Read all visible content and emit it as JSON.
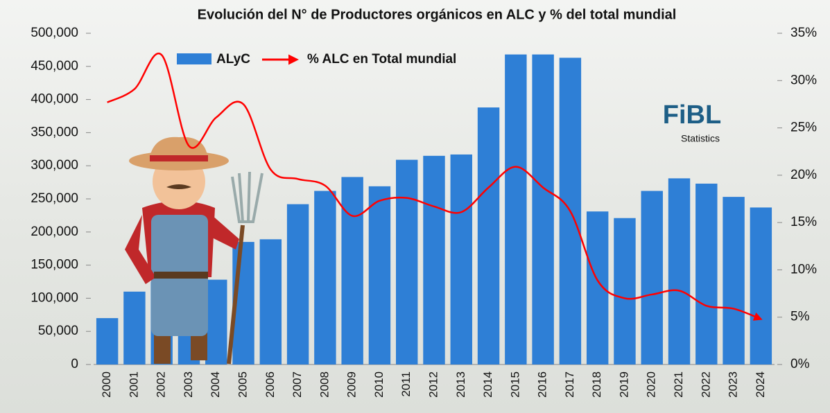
{
  "chart_data": {
    "type": "bar_line",
    "title": "Evolución del N° de Productores  orgánicos en ALC y % del total mundial",
    "categories": [
      "2000",
      "2001",
      "2002",
      "2003",
      "2004",
      "2005",
      "2006",
      "2007",
      "2008",
      "2009",
      "2010",
      "2011",
      "2012",
      "2013",
      "2014",
      "2015",
      "2016",
      "2017",
      "2018",
      "2019",
      "2020",
      "2021",
      "2022",
      "2023",
      "2024"
    ],
    "series": [
      {
        "name": "ALyC",
        "type": "bar",
        "color": "#2e7fd6",
        "values": [
          70000,
          110000,
          125000,
          140000,
          128000,
          185000,
          189000,
          242000,
          262000,
          283000,
          269000,
          309000,
          315000,
          317000,
          388000,
          468000,
          468000,
          463000,
          231000,
          221000,
          262000,
          281000,
          273000,
          253000,
          237000
        ]
      },
      {
        "name": "% ALC en Total mundial",
        "type": "line",
        "axis": "y2",
        "color": "#ff0000",
        "values": [
          27.7,
          29.1,
          32.7,
          23.1,
          26.1,
          27.5,
          20.6,
          19.6,
          18.9,
          15.7,
          17.3,
          17.6,
          16.7,
          16.1,
          18.7,
          20.9,
          18.7,
          16.2,
          8.9,
          7.0,
          7.4,
          7.8,
          6.2,
          5.9,
          4.8
        ]
      }
    ],
    "ylim": [
      0,
      500000
    ],
    "yticks": [
      0,
      {
        "value": 50000,
        "label": "50,000"
      },
      {
        "value": 100000,
        "label": "100,000"
      },
      {
        "value": 150000,
        "label": "150,000"
      },
      {
        "value": 200000,
        "label": "200,000"
      },
      {
        "value": 250000,
        "label": "250,000"
      },
      {
        "value": 300000,
        "label": "300,000"
      },
      {
        "value": 350000,
        "label": "350,000"
      },
      {
        "value": 400000,
        "label": "400,000"
      },
      {
        "value": 450000,
        "label": "450,000"
      },
      {
        "value": 500000,
        "label": "500,000"
      }
    ],
    "y2lim": [
      0,
      35
    ],
    "y2ticks": [
      {
        "value": 0,
        "label": "0%"
      },
      {
        "value": 5,
        "label": "5%"
      },
      {
        "value": 10,
        "label": "10%"
      },
      {
        "value": 15,
        "label": "15%"
      },
      {
        "value": 20,
        "label": "20%"
      },
      {
        "value": 25,
        "label": "25%"
      },
      {
        "value": 30,
        "label": "30%"
      },
      {
        "value": 35,
        "label": "35%"
      }
    ],
    "logo": {
      "name": "FiBL",
      "subtitle": "Statistics"
    }
  }
}
